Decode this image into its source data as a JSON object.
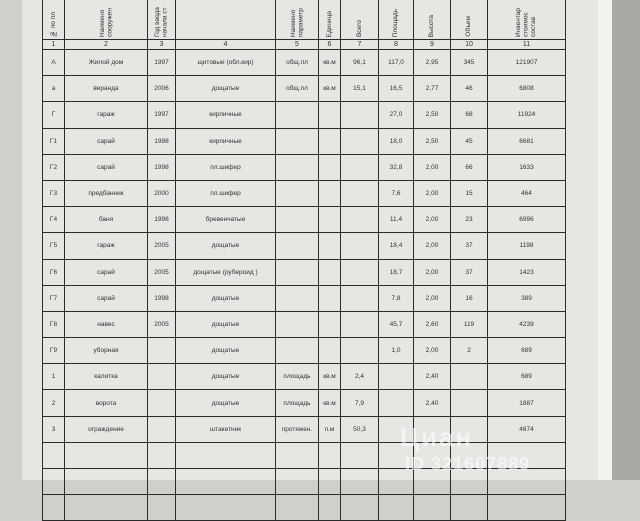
{
  "table": {
    "headers": [
      "№ по пл",
      "Наимено сооружен",
      "Год ввода начала ст",
      "",
      "Наимено параметр",
      "Единица",
      "Всего",
      "Площадь",
      "Высота",
      "Объем",
      "Инвентар стоимос состав"
    ],
    "column_numbers": [
      "1",
      "2",
      "3",
      "4",
      "5",
      "6",
      "7",
      "8",
      "9",
      "10",
      "11"
    ],
    "rows": [
      [
        "А",
        "Жилой дом",
        "1997",
        "щитовые (обл.кир)",
        "общ.пл",
        "кв.м",
        "96,1",
        "117,0",
        "2,95",
        "345",
        "121907"
      ],
      [
        "а",
        "веранда",
        "2006",
        "дощатые",
        "общ.пл",
        "кв.м",
        "15,1",
        "16,5",
        "2,77",
        "46",
        "6808"
      ],
      [
        "Г",
        "гараж",
        "1997",
        "кирпичные",
        "",
        "",
        "",
        "27,0",
        "2,50",
        "68",
        "11924"
      ],
      [
        "Г1",
        "сарай",
        "1998",
        "кирпичные",
        "",
        "",
        "",
        "18,0",
        "2,50",
        "45",
        "6681"
      ],
      [
        "Г2",
        "сарай",
        "1998",
        "пл.шифер",
        "",
        "",
        "",
        "32,8",
        "2,00",
        "66",
        "1633"
      ],
      [
        "Г3",
        "предбанник",
        "2000",
        "пл.шифер",
        "",
        "",
        "",
        "7,6",
        "2,00",
        "15",
        "464"
      ],
      [
        "Г4",
        "баня",
        "1998",
        "бревенчатые",
        "",
        "",
        "",
        "11,4",
        "2,00",
        "23",
        "6996"
      ],
      [
        "Г5",
        "гараж",
        "2005",
        "дощатые",
        "",
        "",
        "",
        "18,4",
        "2,00",
        "37",
        "1198"
      ],
      [
        "Г6",
        "сарай",
        "2005",
        "дощатые (рубероид )",
        "",
        "",
        "",
        "18,7",
        "2,00",
        "37",
        "1423"
      ],
      [
        "Г7",
        "сарай",
        "1998",
        "дощатые",
        "",
        "",
        "",
        "7,8",
        "2,00",
        "16",
        "389"
      ],
      [
        "Г8",
        "навес",
        "2005",
        "дощатые",
        "",
        "",
        "",
        "45,7",
        "2,60",
        "119",
        "4239"
      ],
      [
        "Г9",
        "уборная",
        "",
        "дощатые",
        "",
        "",
        "",
        "1,0",
        "2,00",
        "2",
        "689"
      ],
      [
        "1",
        "калитка",
        "",
        "дощатые",
        "площадь",
        "кв.м",
        "2,4",
        "",
        "2,40",
        "",
        "689"
      ],
      [
        "2",
        "ворота",
        "",
        "дощатые",
        "площадь",
        "кв.м",
        "7,9",
        "",
        "2,40",
        "",
        "1887"
      ],
      [
        "3",
        "ограждение",
        "",
        "штакетник",
        "протяжен.",
        "п.м",
        "50,3",
        "",
        "",
        "",
        "4674"
      ],
      [
        "",
        "",
        "",
        "",
        "",
        "",
        "",
        "",
        "",
        "",
        ""
      ],
      [
        "",
        "",
        "",
        "",
        "",
        "",
        "",
        "",
        "",
        "",
        ""
      ],
      [
        "",
        "",
        "",
        "",
        "",
        "",
        "",
        "",
        "",
        "",
        ""
      ]
    ]
  },
  "watermark": {
    "logo": "Циан",
    "id": "ID 321607889"
  }
}
